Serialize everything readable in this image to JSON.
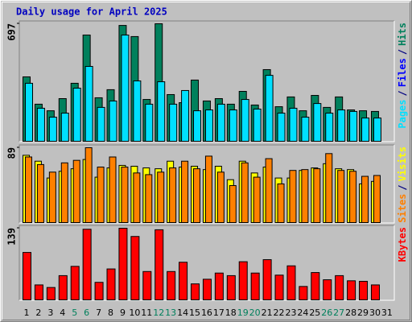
{
  "chart_data": [
    {
      "type": "bar",
      "title": "Daily usage for April 2025",
      "ylim": [
        0,
        697
      ],
      "yticks": [
        697
      ],
      "legend_separator": "/",
      "series": [
        {
          "name": "Hits",
          "color": "#00805c",
          "values": [
            382,
            220,
            181,
            253,
            344,
            630,
            258,
            306,
            687,
            621,
            248,
            697,
            277,
            229,
            363,
            239,
            253,
            220,
            296,
            215,
            425,
            205,
            263,
            181,
            272,
            201,
            263,
            186,
            181,
            177,
            null
          ]
        },
        {
          "name": "Files",
          "color": "#0000ff",
          "values": [
            172,
            98,
            72,
            84,
            158,
            222,
            100,
            120,
            315,
            179,
            110,
            176,
            110,
            150,
            90,
            93,
            110,
            93,
            124,
            96,
            196,
            84,
            98,
            72,
            112,
            84,
            93,
            88,
            69,
            69,
            null
          ]
        },
        {
          "name": "Pages",
          "color": "#00e0ff",
          "values": [
            344,
            196,
            143,
            167,
            315,
            444,
            201,
            239,
            630,
            358,
            220,
            353,
            220,
            301,
            181,
            186,
            220,
            186,
            248,
            191,
            391,
            167,
            196,
            143,
            224,
            167,
            186,
            177,
            138,
            138,
            null
          ]
        }
      ]
    },
    {
      "type": "bar",
      "ylim": [
        0,
        89
      ],
      "yticks": [
        89
      ],
      "legend_separator": "/",
      "series": [
        {
          "name": "Visits",
          "color": "#ffff00",
          "values": [
            80,
            73,
            53,
            61,
            64,
            75,
            54,
            65,
            68,
            67,
            65,
            64,
            73,
            66,
            67,
            63,
            67,
            51,
            73,
            59,
            66,
            53,
            53,
            62,
            65,
            70,
            64,
            63,
            46,
            49,
            null
          ]
        },
        {
          "name": "Sites",
          "color": "#ff8000",
          "values": [
            78,
            69,
            60,
            71,
            74,
            89,
            66,
            78,
            66,
            59,
            57,
            60,
            65,
            73,
            64,
            79,
            60,
            44,
            71,
            54,
            76,
            46,
            62,
            63,
            64,
            82,
            62,
            61,
            55,
            56,
            null
          ]
        }
      ]
    },
    {
      "type": "bar",
      "ylim": [
        0,
        139
      ],
      "yticks": [
        139
      ],
      "categories": [
        "1",
        "2",
        "3",
        "4",
        "5",
        "6",
        "7",
        "8",
        "9",
        "10",
        "11",
        "12",
        "13",
        "14",
        "15",
        "16",
        "17",
        "18",
        "19",
        "20",
        "21",
        "22",
        "23",
        "24",
        "25",
        "26",
        "27",
        "28",
        "29",
        "30",
        "31"
      ],
      "category_colors": [
        "#000000",
        "#000000",
        "#000000",
        "#000000",
        "#00805c",
        "#00805c",
        "#000000",
        "#000000",
        "#000000",
        "#000000",
        "#000000",
        "#00805c",
        "#00805c",
        "#000000",
        "#000000",
        "#000000",
        "#000000",
        "#000000",
        "#00805c",
        "#00805c",
        "#000000",
        "#000000",
        "#000000",
        "#000000",
        "#000000",
        "#00805c",
        "#00805c",
        "#000000",
        "#000000",
        "#000000",
        "#000000"
      ],
      "series": [
        {
          "name": "KBytes",
          "color": "#ff0000",
          "values": [
            92,
            29,
            24,
            47,
            65,
            137,
            34,
            60,
            139,
            123,
            55,
            136,
            55,
            73,
            31,
            40,
            52,
            47,
            74,
            52,
            78,
            48,
            66,
            26,
            53,
            39,
            47,
            37,
            36,
            29,
            null
          ]
        }
      ]
    }
  ]
}
